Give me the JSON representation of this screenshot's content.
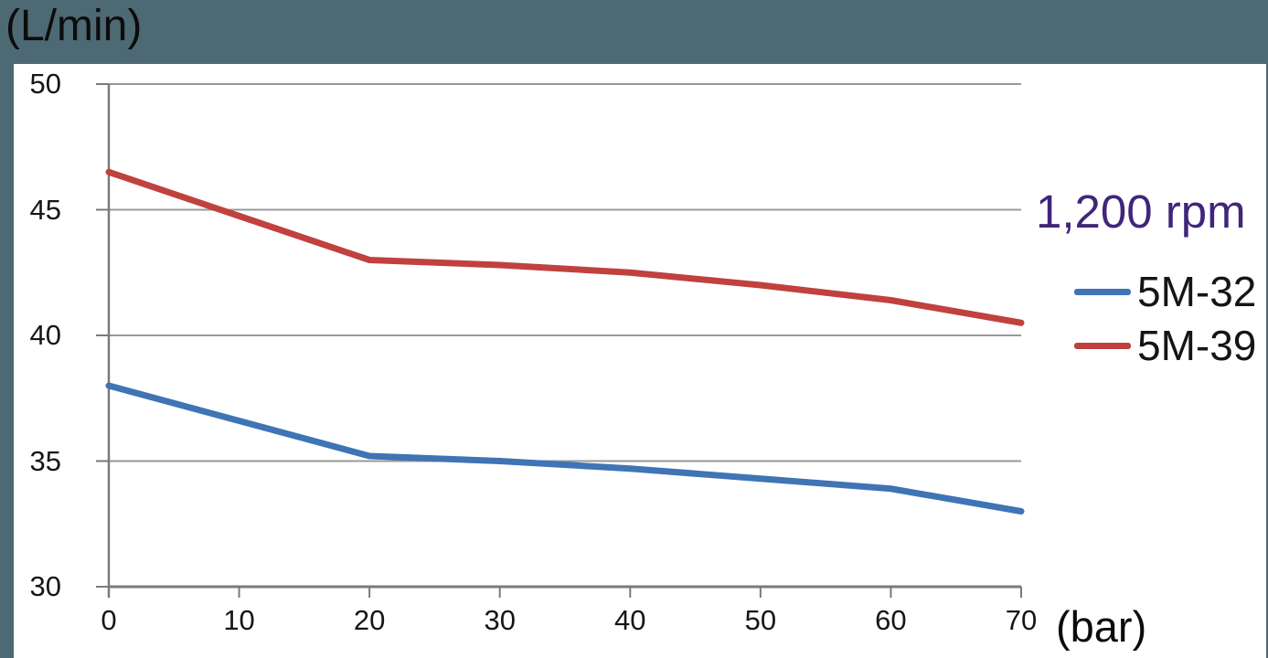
{
  "colors": {
    "page_background": "#4d6973",
    "panel_background": "#ffffff",
    "grid": "#999999",
    "axis": "#7a7a7a",
    "tick_text": "#161616",
    "legend_title": "#40267a",
    "series_blue": "#3f74b5",
    "series_red": "#c0413e"
  },
  "chart_data": {
    "type": "line",
    "x": [
      0,
      10,
      20,
      30,
      40,
      50,
      60,
      70
    ],
    "series": [
      {
        "name": "5M-32",
        "color": "#3f74b5",
        "values": [
          38.0,
          36.6,
          35.2,
          35.0,
          34.7,
          34.3,
          33.9,
          33.0
        ]
      },
      {
        "name": "5M-39",
        "color": "#c0413e",
        "values": [
          46.5,
          44.75,
          43.0,
          42.8,
          42.5,
          42.0,
          41.4,
          40.5
        ]
      }
    ],
    "title": "",
    "legend_title": "1,200 rpm",
    "xlabel": "(bar)",
    "ylabel": "(L/min)",
    "xlim": [
      0,
      70
    ],
    "ylim": [
      30,
      50
    ],
    "xticks": [
      0,
      10,
      20,
      30,
      40,
      50,
      60,
      70
    ],
    "yticks": [
      30,
      35,
      40,
      45,
      50
    ],
    "grid": "horizontal",
    "legend_position": "right"
  }
}
